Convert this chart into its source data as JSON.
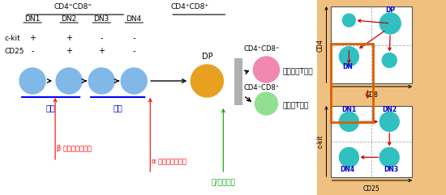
{
  "bg_color": "#f0c080",
  "circle_blue": "#80b8e8",
  "circle_yellow": "#e8a020",
  "circle_pink": "#f088b0",
  "circle_green": "#90e090",
  "circle_teal": "#30c0c0",
  "dn_labels": [
    "DN1",
    "DN2",
    "DN3",
    "DN4"
  ],
  "ckit_values": [
    "+",
    "+",
    "-",
    "-"
  ],
  "cd25_values": [
    "-",
    "+",
    "+",
    "-"
  ],
  "proliferate": "増殖",
  "dp_label": "DP",
  "beta_label": "β 鎖遺伝子再構成",
  "alpha_label": "α 鎖遺伝子再構成",
  "selection_label": "正/負の選択",
  "cd4_cd8neg_label": "CD4⁺CD8⁼",
  "cd4neg_cd8_label": "CD4⁼CD8⁺",
  "helper_label": "ヘルパーT細胞",
  "killer_label": "キラーT細胞",
  "cd4_cd8_neg_header": "CD4⁼CD8⁼",
  "cd4_cd8_pos_header": "CD4⁺CD8⁺",
  "box_orange": "#d86000",
  "arrow_red": "#cc0000",
  "arrow_green": "#00aa00",
  "label_blue": "#0000cc",
  "label_cd4": "CD4",
  "label_cd8": "CD8",
  "label_ckit": "c-kit",
  "label_cd25": "CD25",
  "label_dn": "DN",
  "label_dn1": "DN1",
  "label_dn2": "DN2",
  "label_dn3": "DN3",
  "label_dn4": "DN4",
  "label_dp_top": "DP"
}
